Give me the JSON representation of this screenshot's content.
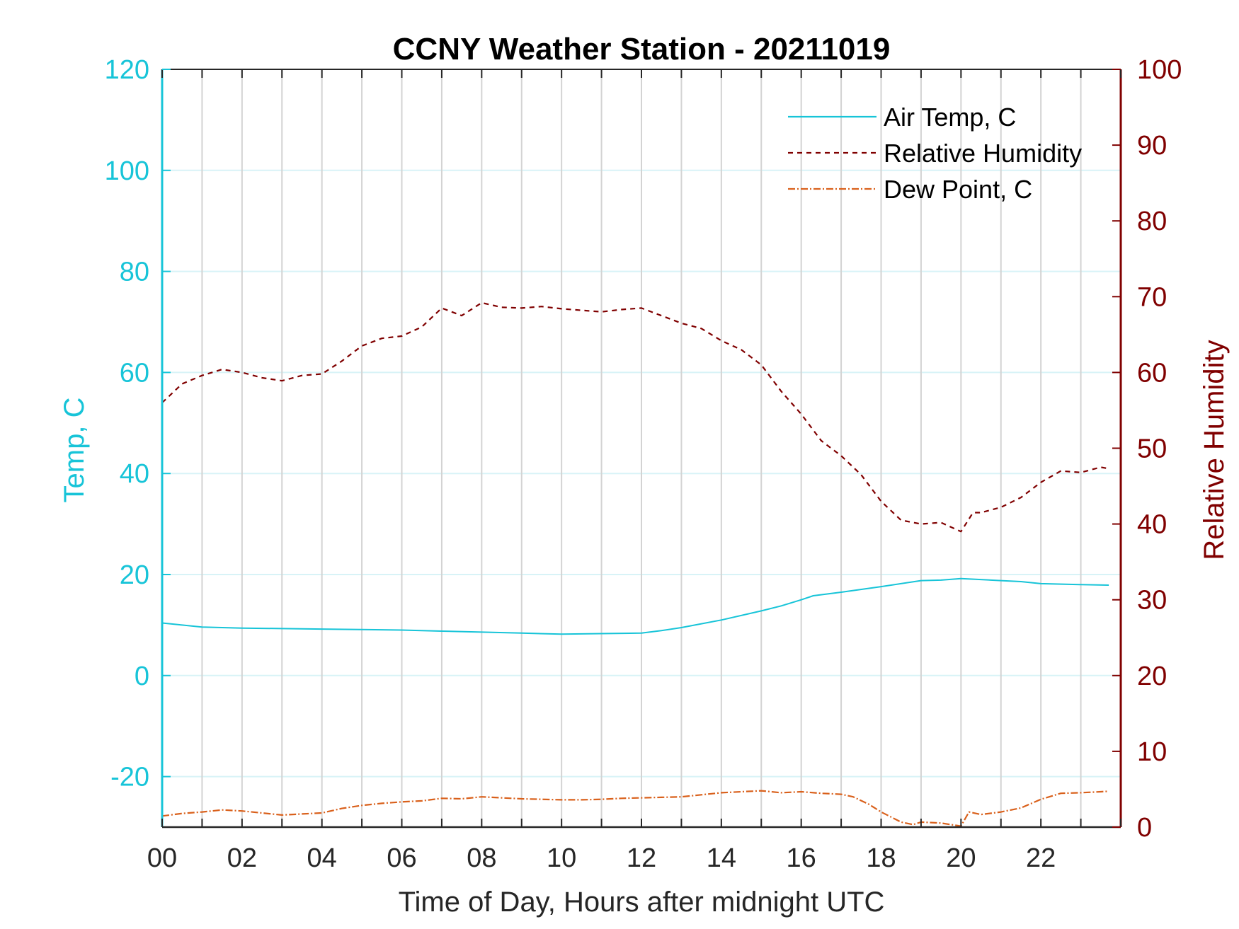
{
  "chart_data": {
    "type": "line",
    "title": "CCNY Weather Station - 20211019",
    "xlabel": "Time of Day, Hours after midnight UTC",
    "ylabel_left": "Temp, C",
    "ylabel_right": "Relative Humidity",
    "xlim": [
      0,
      24
    ],
    "ylim_left": [
      -30,
      120
    ],
    "ylim_right": [
      0,
      100
    ],
    "x_ticks": [
      0,
      2,
      4,
      6,
      8,
      10,
      12,
      14,
      16,
      18,
      20,
      22
    ],
    "x_tick_labels": [
      "00",
      "02",
      "04",
      "06",
      "08",
      "10",
      "12",
      "14",
      "16",
      "18",
      "20",
      "22"
    ],
    "y_left_ticks": [
      120,
      100,
      80,
      60,
      40,
      20,
      0,
      -20
    ],
    "y_left_tick_labels": [
      "120",
      "100",
      "80",
      "60",
      "40",
      "20",
      "0",
      "-20"
    ],
    "y_right_ticks": [
      100,
      90,
      80,
      70,
      60,
      50,
      40,
      30,
      20,
      10,
      0
    ],
    "y_right_tick_labels": [
      "100",
      "90",
      "80",
      "70",
      "60",
      "50",
      "40",
      "30",
      "20",
      "10",
      "0"
    ],
    "grid": "vertical lines every hour (gray), horizontal lines at left-axis ticks (light cyan)",
    "legend_position": "top-right",
    "colors": {
      "temp": "#17c4d8",
      "humidity": "#800000",
      "dewpoint": "#d9601b",
      "vgrid": "#d3d3d3",
      "hgrid": "#d8f3f7",
      "axis": "#262626"
    },
    "series": [
      {
        "name": "Air Temp, C",
        "axis": "left",
        "style": "solid",
        "x": [
          0,
          0.5,
          1,
          2,
          3,
          4,
          5,
          6,
          7,
          8,
          9,
          10,
          11,
          12,
          12.5,
          13,
          14,
          15,
          15.5,
          16,
          16.3,
          17,
          18,
          19,
          19.5,
          20,
          20.5,
          21,
          21.5,
          22,
          23,
          23.7
        ],
        "values": [
          10.4,
          10.0,
          9.6,
          9.4,
          9.3,
          9.2,
          9.1,
          9.0,
          8.8,
          8.6,
          8.4,
          8.2,
          8.3,
          8.4,
          8.9,
          9.5,
          11.0,
          12.8,
          13.8,
          15.0,
          15.8,
          16.5,
          17.6,
          18.8,
          18.9,
          19.2,
          19.0,
          18.8,
          18.6,
          18.2,
          18.0,
          17.9
        ]
      },
      {
        "name": "Relative Humidity",
        "axis": "right",
        "style": "dashed",
        "x": [
          0,
          0.5,
          1,
          1.5,
          2,
          2.5,
          3,
          3.5,
          4,
          4.5,
          5,
          5.5,
          6,
          6.5,
          7,
          7.5,
          8,
          8.5,
          9,
          9.5,
          10,
          10.5,
          11,
          11.5,
          12,
          12.5,
          13,
          13.5,
          14,
          14.5,
          15,
          15.5,
          16,
          16.5,
          17,
          17.5,
          18,
          18.5,
          19,
          19.5,
          20,
          20.3,
          20.5,
          21,
          21.5,
          22,
          22.5,
          23,
          23.5,
          23.7
        ],
        "values": [
          56,
          58.5,
          59.6,
          60.4,
          60.0,
          59.3,
          58.9,
          59.6,
          59.8,
          61.5,
          63.5,
          64.5,
          64.8,
          66.0,
          68.5,
          67.5,
          69.2,
          68.6,
          68.5,
          68.7,
          68.4,
          68.2,
          68.0,
          68.3,
          68.5,
          67.5,
          66.5,
          65.8,
          64.2,
          63.0,
          61.0,
          57.5,
          54.5,
          51.0,
          49.0,
          46.5,
          43.0,
          40.5,
          40.0,
          40.2,
          39.0,
          41.5,
          41.5,
          42.2,
          43.5,
          45.5,
          47.0,
          46.8,
          47.5,
          47.3
        ]
      },
      {
        "name": "Dew Point, C",
        "axis": "left",
        "style": "dash-dot",
        "x": [
          0,
          0.5,
          1,
          1.5,
          2,
          2.5,
          3,
          3.5,
          4,
          4.5,
          5,
          5.5,
          6,
          6.5,
          7,
          7.5,
          8,
          8.5,
          9,
          9.5,
          10,
          10.5,
          11,
          11.5,
          12,
          12.5,
          13,
          13.5,
          14,
          14.5,
          15,
          15.5,
          16,
          16.5,
          17,
          17.3,
          17.7,
          18,
          18.5,
          18.8,
          19,
          19.5,
          20,
          20.2,
          20.5,
          21,
          21.5,
          22,
          22.5,
          23,
          23.5,
          23.7
        ],
        "values": [
          -27.8,
          -27.3,
          -27.0,
          -26.6,
          -26.8,
          -27.2,
          -27.6,
          -27.4,
          -27.2,
          -26.3,
          -25.7,
          -25.3,
          -25.0,
          -24.8,
          -24.3,
          -24.4,
          -24.0,
          -24.2,
          -24.4,
          -24.5,
          -24.6,
          -24.6,
          -24.5,
          -24.3,
          -24.2,
          -24.1,
          -24.0,
          -23.6,
          -23.2,
          -23.0,
          -22.8,
          -23.2,
          -23.0,
          -23.3,
          -23.5,
          -24.0,
          -25.5,
          -27.0,
          -29.0,
          -29.5,
          -29.0,
          -29.2,
          -29.8,
          -27.0,
          -27.5,
          -27.0,
          -26.2,
          -24.5,
          -23.3,
          -23.2,
          -23.0,
          -22.9
        ]
      }
    ]
  }
}
